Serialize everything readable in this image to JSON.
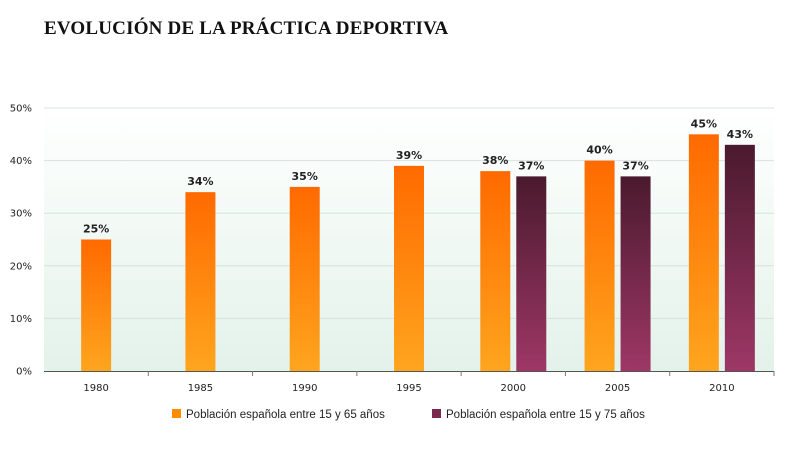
{
  "chart_data": {
    "type": "bar",
    "title": "EVOLUCIÓN DE LA PRÁCTICA DEPORTIVA",
    "categories": [
      "1980",
      "1985",
      "1990",
      "1995",
      "2000",
      "2005",
      "2010"
    ],
    "series": [
      {
        "name": "Población española entre 15 y 65 años",
        "values": [
          25,
          34,
          35,
          39,
          38,
          40,
          45
        ],
        "labels": [
          "25%",
          "34%",
          "35%",
          "39%",
          "38%",
          "40%",
          "45%"
        ],
        "color_top": "#ff6a00",
        "color_bottom": "#ffa51e",
        "legend_color": "#ff8c00"
      },
      {
        "name": "Población española entre 15 y 75 años",
        "values": [
          null,
          null,
          null,
          null,
          37,
          37,
          43
        ],
        "labels": [
          null,
          null,
          null,
          null,
          "37%",
          "37%",
          "43%"
        ],
        "color_top": "#4a1a2e",
        "color_bottom": "#9e3766",
        "legend_color": "#7a2a4e"
      }
    ],
    "y_ticks": [
      "0%",
      "10%",
      "20%",
      "30%",
      "40%",
      "50%"
    ],
    "ylim": [
      0,
      50
    ],
    "grid": true,
    "legend_position": "bottom",
    "plot_background_top": "#ffffff",
    "plot_background_bottom": "#e3f2ea"
  }
}
